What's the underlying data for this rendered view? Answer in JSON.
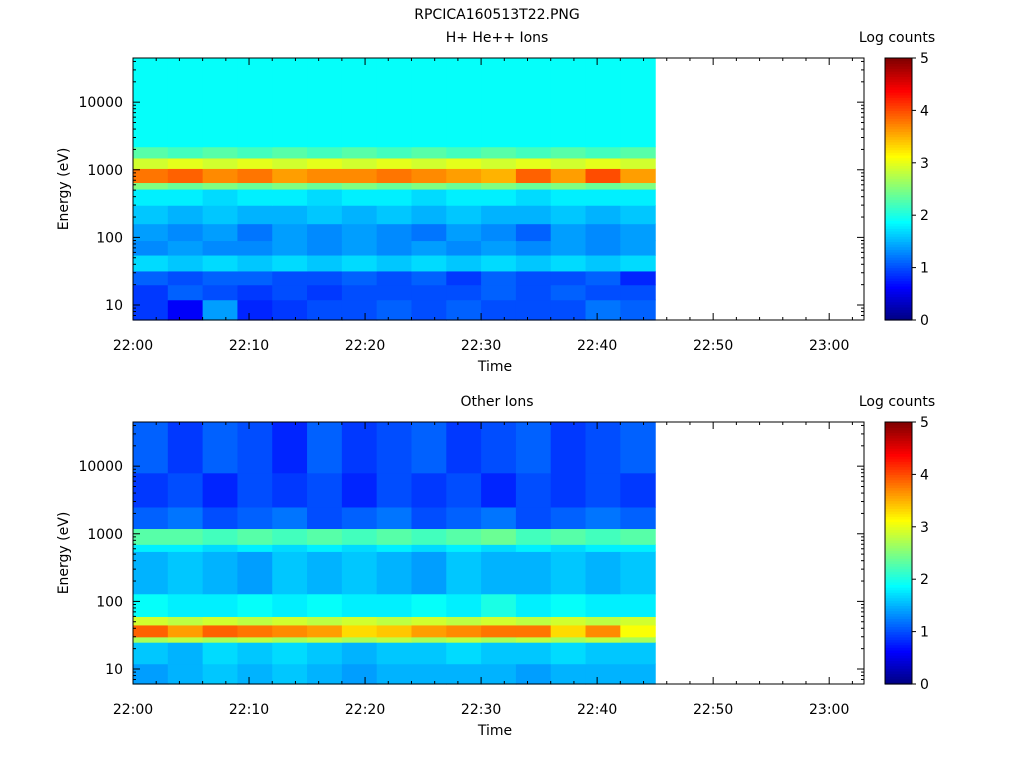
{
  "page_title": "RPCICA160513T22.PNG",
  "time_axis": {
    "label": "Time",
    "start": "22:00",
    "end": "23:03",
    "ticks": [
      "22:00",
      "22:10",
      "22:20",
      "22:30",
      "22:40",
      "22:50",
      "23:00"
    ],
    "minor_tick_step_minutes": 2,
    "data_end": "22:45"
  },
  "colorbar": {
    "label": "Log counts",
    "range": [
      0,
      5
    ],
    "ticks": [
      "0",
      "1",
      "2",
      "3",
      "4",
      "5"
    ]
  },
  "chart_data": [
    {
      "type": "heatmap",
      "title": "H+ He++ Ions",
      "xlabel": "Time",
      "ylabel": "Energy (eV)",
      "yscale": "log",
      "ylim": [
        6,
        45000
      ],
      "ytick_labels": [
        "10",
        "100",
        "1000",
        "10000"
      ],
      "time_bins": [
        "22:00",
        "22:03",
        "22:06",
        "22:09",
        "22:12",
        "22:15",
        "22:18",
        "22:21",
        "22:24",
        "22:27",
        "22:30",
        "22:33",
        "22:36",
        "22:39",
        "22:42"
      ],
      "bin_minutes": 3,
      "energy_bands": [
        {
          "from": 6,
          "to": 12,
          "log_counts": [
            0.9,
            0.6,
            1.4,
            0.8,
            0.9,
            1.0,
            1.0,
            1.1,
            1.0,
            1.1,
            1.0,
            1.0,
            1.0,
            1.2,
            1.1
          ]
        },
        {
          "from": 12,
          "to": 20,
          "log_counts": [
            0.9,
            1.1,
            1.0,
            0.9,
            1.0,
            0.9,
            1.0,
            1.0,
            1.0,
            1.0,
            1.1,
            1.0,
            1.1,
            1.0,
            1.0
          ]
        },
        {
          "from": 20,
          "to": 32,
          "log_counts": [
            1.1,
            1.0,
            1.1,
            1.1,
            1.0,
            1.0,
            1.1,
            1.0,
            1.1,
            0.9,
            1.1,
            1.0,
            1.0,
            1.1,
            0.8
          ]
        },
        {
          "from": 32,
          "to": 55,
          "log_counts": [
            1.7,
            1.6,
            1.7,
            1.6,
            1.7,
            1.6,
            1.7,
            1.6,
            1.7,
            1.6,
            1.7,
            1.6,
            1.7,
            1.6,
            1.7
          ]
        },
        {
          "from": 55,
          "to": 90,
          "log_counts": [
            1.3,
            1.4,
            1.3,
            1.3,
            1.4,
            1.3,
            1.4,
            1.3,
            1.4,
            1.3,
            1.4,
            1.3,
            1.4,
            1.3,
            1.4
          ]
        },
        {
          "from": 90,
          "to": 160,
          "log_counts": [
            1.4,
            1.3,
            1.4,
            1.2,
            1.4,
            1.3,
            1.4,
            1.3,
            1.2,
            1.4,
            1.3,
            1.1,
            1.4,
            1.3,
            1.4
          ]
        },
        {
          "from": 160,
          "to": 300,
          "log_counts": [
            1.6,
            1.5,
            1.6,
            1.5,
            1.5,
            1.6,
            1.5,
            1.6,
            1.5,
            1.6,
            1.5,
            1.5,
            1.6,
            1.5,
            1.6
          ]
        },
        {
          "from": 300,
          "to": 520,
          "log_counts": [
            1.8,
            1.8,
            1.7,
            1.8,
            1.8,
            1.7,
            1.8,
            1.8,
            1.7,
            1.8,
            1.8,
            1.7,
            1.8,
            1.8,
            1.8
          ]
        },
        {
          "from": 520,
          "to": 650,
          "log_counts": [
            2.5,
            2.4,
            2.5,
            2.4,
            2.5,
            2.4,
            2.5,
            2.4,
            2.5,
            2.4,
            2.5,
            2.4,
            2.5,
            2.4,
            2.5
          ]
        },
        {
          "from": 650,
          "to": 1050,
          "log_counts": [
            3.8,
            3.9,
            3.7,
            3.8,
            3.6,
            3.7,
            3.7,
            3.8,
            3.7,
            3.6,
            3.5,
            3.9,
            3.6,
            4.0,
            3.6
          ]
        },
        {
          "from": 1050,
          "to": 1500,
          "log_counts": [
            2.9,
            3.0,
            2.9,
            3.0,
            2.9,
            3.0,
            2.9,
            3.0,
            2.9,
            3.0,
            2.9,
            3.0,
            2.9,
            3.0,
            2.9
          ]
        },
        {
          "from": 1500,
          "to": 2200,
          "log_counts": [
            2.3,
            2.2,
            2.3,
            2.2,
            2.3,
            2.2,
            2.3,
            2.2,
            2.3,
            2.2,
            2.3,
            2.2,
            2.3,
            2.2,
            2.3
          ]
        },
        {
          "from": 2200,
          "to": 45000,
          "log_counts": [
            1.9,
            1.9,
            1.9,
            1.9,
            1.9,
            1.9,
            1.9,
            1.9,
            1.9,
            1.9,
            1.9,
            1.9,
            1.9,
            1.9,
            1.9
          ]
        }
      ]
    },
    {
      "type": "heatmap",
      "title": "Other Ions",
      "xlabel": "Time",
      "ylabel": "Energy (eV)",
      "yscale": "log",
      "ylim": [
        6,
        45000
      ],
      "ytick_labels": [
        "10",
        "100",
        "1000",
        "10000"
      ],
      "time_bins": [
        "22:00",
        "22:03",
        "22:06",
        "22:09",
        "22:12",
        "22:15",
        "22:18",
        "22:21",
        "22:24",
        "22:27",
        "22:30",
        "22:33",
        "22:36",
        "22:39",
        "22:42"
      ],
      "bin_minutes": 3,
      "energy_bands": [
        {
          "from": 6,
          "to": 12,
          "log_counts": [
            1.4,
            1.5,
            1.6,
            1.5,
            1.6,
            1.5,
            1.4,
            1.5,
            1.5,
            1.5,
            1.5,
            1.4,
            1.5,
            1.5,
            1.5
          ]
        },
        {
          "from": 12,
          "to": 25,
          "log_counts": [
            1.6,
            1.5,
            1.7,
            1.6,
            1.7,
            1.6,
            1.5,
            1.6,
            1.6,
            1.7,
            1.6,
            1.6,
            1.7,
            1.6,
            1.6
          ]
        },
        {
          "from": 25,
          "to": 30,
          "log_counts": [
            2.7,
            2.8,
            2.7,
            2.8,
            2.7,
            2.8,
            2.7,
            2.8,
            2.7,
            2.8,
            2.7,
            2.8,
            2.7,
            2.8,
            2.7
          ]
        },
        {
          "from": 30,
          "to": 45,
          "log_counts": [
            3.9,
            3.6,
            3.9,
            3.8,
            3.7,
            3.6,
            3.3,
            3.4,
            3.6,
            3.7,
            3.8,
            3.8,
            3.3,
            3.7,
            3.1
          ]
        },
        {
          "from": 45,
          "to": 60,
          "log_counts": [
            2.9,
            2.8,
            2.9,
            2.8,
            2.9,
            2.8,
            2.9,
            2.8,
            2.9,
            2.8,
            2.9,
            2.8,
            2.9,
            2.8,
            2.9
          ]
        },
        {
          "from": 60,
          "to": 130,
          "log_counts": [
            1.9,
            1.8,
            1.8,
            1.9,
            1.8,
            1.9,
            1.8,
            1.8,
            1.9,
            1.8,
            2.0,
            1.8,
            1.9,
            1.8,
            1.8
          ]
        },
        {
          "from": 130,
          "to": 550,
          "log_counts": [
            1.5,
            1.6,
            1.5,
            1.4,
            1.6,
            1.5,
            1.6,
            1.5,
            1.4,
            1.6,
            1.5,
            1.5,
            1.6,
            1.5,
            1.6
          ]
        },
        {
          "from": 550,
          "to": 700,
          "log_counts": [
            1.8,
            1.8,
            1.7,
            1.8,
            1.7,
            1.8,
            1.7,
            1.8,
            1.7,
            1.8,
            1.7,
            1.8,
            1.7,
            1.8,
            1.8
          ]
        },
        {
          "from": 700,
          "to": 1200,
          "log_counts": [
            2.3,
            2.3,
            2.2,
            2.3,
            2.2,
            2.3,
            2.2,
            2.3,
            2.2,
            2.3,
            2.4,
            2.2,
            2.3,
            2.2,
            2.3
          ]
        },
        {
          "from": 1200,
          "to": 2500,
          "log_counts": [
            1.1,
            1.2,
            1.0,
            1.1,
            1.2,
            1.0,
            1.1,
            1.2,
            1.0,
            1.1,
            1.2,
            1.0,
            1.1,
            1.2,
            1.1
          ]
        },
        {
          "from": 2500,
          "to": 8000,
          "log_counts": [
            0.9,
            1.0,
            0.8,
            1.0,
            0.9,
            1.0,
            0.8,
            1.0,
            0.9,
            1.0,
            0.8,
            1.0,
            0.9,
            1.0,
            0.9
          ]
        },
        {
          "from": 8000,
          "to": 45000,
          "log_counts": [
            1.1,
            0.9,
            1.1,
            1.0,
            0.8,
            1.1,
            0.9,
            1.0,
            1.1,
            0.9,
            1.0,
            1.1,
            0.9,
            1.0,
            1.1
          ]
        }
      ]
    }
  ]
}
